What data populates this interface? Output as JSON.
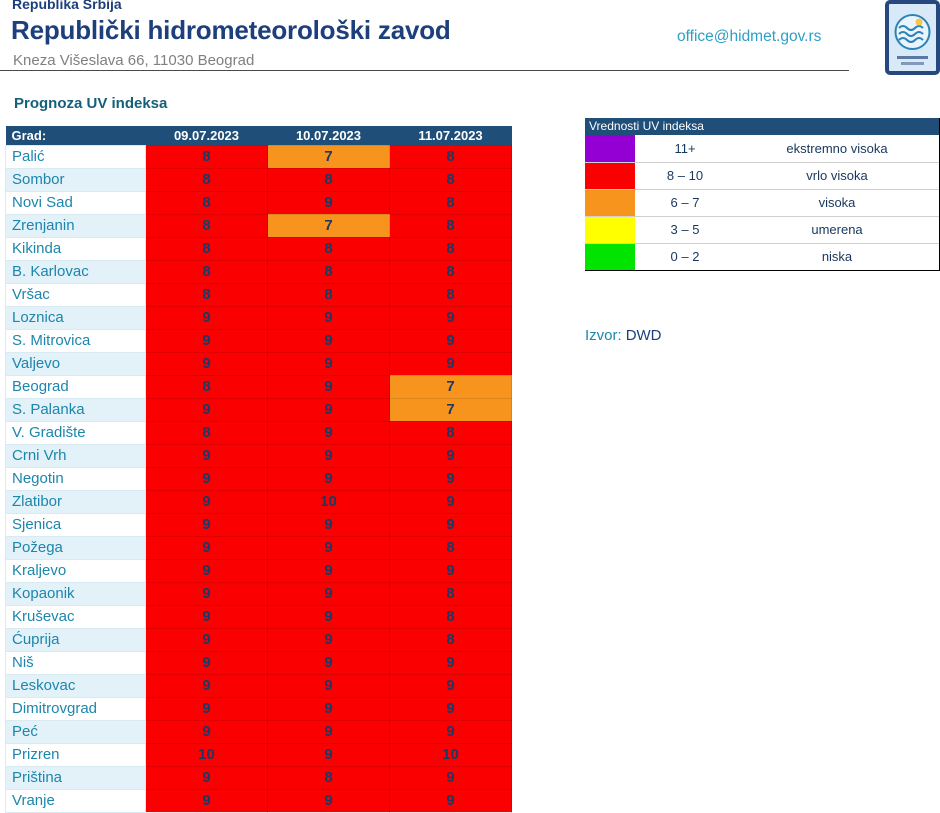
{
  "header": {
    "country": "Republika Srbija",
    "org_name": "Republički hidrometeorološki zavod",
    "address": "Kneza Višeslava 66, 11030 Beograd",
    "email": "office@hidmet.gov.rs"
  },
  "section": {
    "title": "Prognoza UV indeksa"
  },
  "source": {
    "label": "Izvor:",
    "name": "DWD"
  },
  "uv_scale": {
    "extreme": "#9400D3",
    "very_high": "#FB0000",
    "high": "#F7941D",
    "moderate": "#FFFF00",
    "low": "#00E400"
  },
  "uv_table": {
    "columns": [
      "Grad:",
      "09.07.2023",
      "10.07.2023",
      "11.07.2023"
    ],
    "rows": [
      {
        "city": "Palić",
        "values": [
          8,
          7,
          8
        ]
      },
      {
        "city": "Sombor",
        "values": [
          8,
          8,
          8
        ]
      },
      {
        "city": "Novi Sad",
        "values": [
          8,
          9,
          8
        ]
      },
      {
        "city": "Zrenjanin",
        "values": [
          8,
          7,
          8
        ]
      },
      {
        "city": "Kikinda",
        "values": [
          8,
          8,
          8
        ]
      },
      {
        "city": "B. Karlovac",
        "values": [
          8,
          8,
          8
        ]
      },
      {
        "city": "Vršac",
        "values": [
          8,
          8,
          8
        ]
      },
      {
        "city": "Loznica",
        "values": [
          9,
          9,
          9
        ]
      },
      {
        "city": "S. Mitrovica",
        "values": [
          9,
          9,
          9
        ]
      },
      {
        "city": "Valjevo",
        "values": [
          9,
          9,
          9
        ]
      },
      {
        "city": "Beograd",
        "values": [
          8,
          9,
          7
        ]
      },
      {
        "city": "S. Palanka",
        "values": [
          9,
          9,
          7
        ]
      },
      {
        "city": "V. Gradište",
        "values": [
          8,
          9,
          8
        ]
      },
      {
        "city": "Crni Vrh",
        "values": [
          9,
          9,
          9
        ]
      },
      {
        "city": "Negotin",
        "values": [
          9,
          9,
          9
        ]
      },
      {
        "city": "Zlatibor",
        "values": [
          9,
          10,
          9
        ]
      },
      {
        "city": "Sjenica",
        "values": [
          9,
          9,
          9
        ]
      },
      {
        "city": "Požega",
        "values": [
          9,
          9,
          8
        ]
      },
      {
        "city": "Kraljevo",
        "values": [
          9,
          9,
          9
        ]
      },
      {
        "city": "Kopaonik",
        "values": [
          9,
          9,
          8
        ]
      },
      {
        "city": "Kruševac",
        "values": [
          9,
          9,
          8
        ]
      },
      {
        "city": "Ćuprija",
        "values": [
          9,
          9,
          8
        ]
      },
      {
        "city": "Niš",
        "values": [
          9,
          9,
          9
        ]
      },
      {
        "city": "Leskovac",
        "values": [
          9,
          9,
          9
        ]
      },
      {
        "city": "Dimitrovgrad",
        "values": [
          9,
          9,
          9
        ]
      },
      {
        "city": "Peć",
        "values": [
          9,
          9,
          9
        ]
      },
      {
        "city": "Prizren",
        "values": [
          10,
          9,
          10
        ]
      },
      {
        "city": "Priština",
        "values": [
          9,
          8,
          9
        ]
      },
      {
        "city": "Vranje",
        "values": [
          9,
          9,
          9
        ]
      }
    ]
  },
  "legend": {
    "title": "Vrednosti UV indeksa",
    "items": [
      {
        "range": "11+",
        "label": "ekstremno visoka",
        "color": "#9400D3"
      },
      {
        "range": "8 – 10",
        "label": "vrlo visoka",
        "color": "#FB0000"
      },
      {
        "range": "6 – 7",
        "label": "visoka",
        "color": "#F7941D"
      },
      {
        "range": "3 – 5",
        "label": "umerena",
        "color": "#FFFF00"
      },
      {
        "range": "0 – 2",
        "label": "niska",
        "color": "#00E400"
      }
    ]
  }
}
